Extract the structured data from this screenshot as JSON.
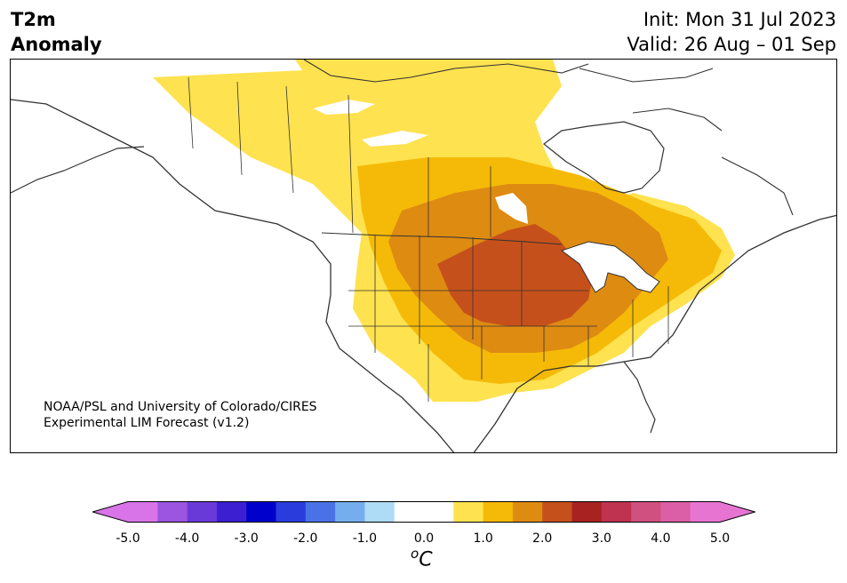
{
  "header": {
    "title_line1": "T2m",
    "title_line2": "Anomaly",
    "init": "Init: Mon 31 Jul 2023",
    "valid": "Valid: 26 Aug – 01 Sep"
  },
  "credit": {
    "line1": "NOAA/PSL and University of Colorado/CIRES",
    "line2": "Experimental LIM Forecast (v1.2)"
  },
  "legend": {
    "unit_base": "C",
    "unit_sup": "o",
    "tick_labels": [
      "-5.0",
      "-4.0",
      "-3.0",
      "-2.0",
      "-1.0",
      "0.0",
      "1.0",
      "2.0",
      "3.0",
      "4.0",
      "5.0"
    ],
    "under_color": "#d874e8",
    "over_color": "#e874d2",
    "colors": [
      "#d874e8",
      "#9b55e0",
      "#6a3ad9",
      "#3b1fd0",
      "#0000cc",
      "#2a3cdc",
      "#4a72e6",
      "#74aeee",
      "#aedbf5",
      "#ffffff",
      "#ffffff",
      "#ffe24f",
      "#f5ba07",
      "#de8b12",
      "#c6501b",
      "#a92222",
      "#bf3250",
      "#d0507f",
      "#db5fa6",
      "#e874d2"
    ]
  },
  "anomaly_levels": [
    {
      "label": "0.5–1.0",
      "color": "#ffe24f"
    },
    {
      "label": "1.0–1.5",
      "color": "#f5ba07"
    },
    {
      "label": "1.5–2.0",
      "color": "#de8b12"
    },
    {
      "label": "2.0–2.5",
      "color": "#c6501b"
    }
  ]
}
